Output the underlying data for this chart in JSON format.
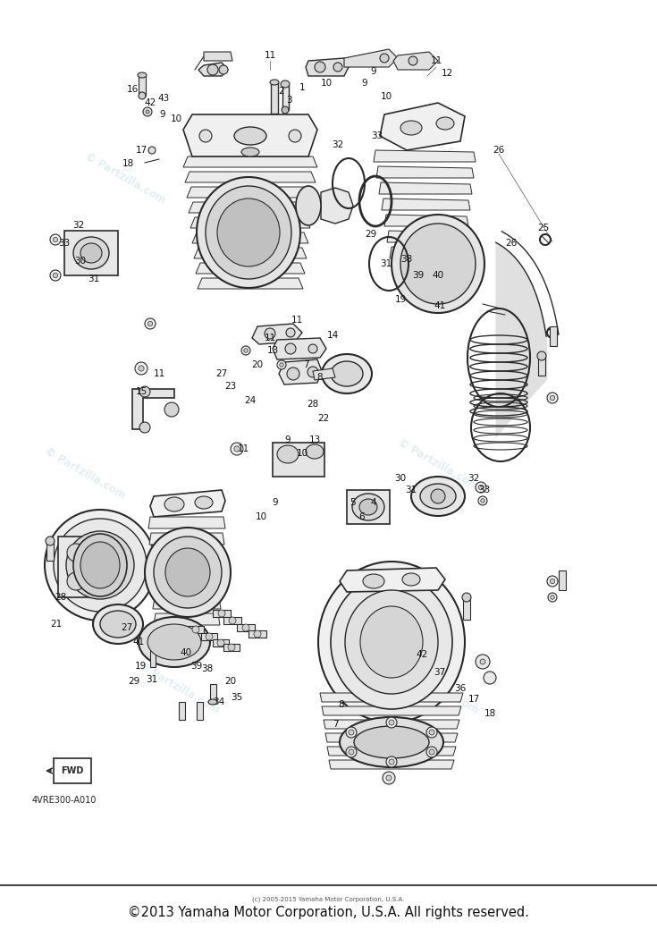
{
  "bg_color": "#ffffff",
  "footer_text": "©2013 Yamaha Motor Corporation, U.S.A. All rights reserved.",
  "footer_small": "(c) 2005-2015 Yamaha Motor Corporation, U.S.A.",
  "part_number": "4VRE300-A010",
  "watermark_color": "#c5dde8",
  "watermark_alpha": 0.5,
  "line_color": "#2a2a2a",
  "fig_width": 7.35,
  "fig_height": 10.49,
  "dpi": 100,
  "upper_labels": [
    [
      302,
      62,
      "11"
    ],
    [
      488,
      68,
      "11"
    ],
    [
      500,
      82,
      "12"
    ],
    [
      418,
      80,
      "9"
    ],
    [
      408,
      93,
      "9"
    ],
    [
      365,
      93,
      "10"
    ],
    [
      432,
      108,
      "10"
    ],
    [
      315,
      102,
      "2"
    ],
    [
      323,
      112,
      "3"
    ],
    [
      338,
      98,
      "1"
    ],
    [
      148,
      100,
      "16"
    ],
    [
      168,
      115,
      "42"
    ],
    [
      183,
      110,
      "43"
    ],
    [
      182,
      128,
      "9"
    ],
    [
      197,
      133,
      "10"
    ],
    [
      158,
      168,
      "17"
    ],
    [
      143,
      183,
      "18"
    ],
    [
      88,
      252,
      "32"
    ],
    [
      72,
      272,
      "33"
    ],
    [
      90,
      292,
      "30"
    ],
    [
      105,
      312,
      "31"
    ],
    [
      558,
      168,
      "26"
    ],
    [
      608,
      255,
      "25"
    ],
    [
      572,
      272,
      "26"
    ],
    [
      432,
      295,
      "31"
    ],
    [
      455,
      290,
      "38"
    ],
    [
      468,
      308,
      "39"
    ],
    [
      490,
      308,
      "40"
    ],
    [
      448,
      335,
      "19"
    ],
    [
      492,
      342,
      "41"
    ],
    [
      415,
      262,
      "29"
    ],
    [
      378,
      162,
      "32"
    ],
    [
      422,
      152,
      "33"
    ],
    [
      358,
      422,
      "8"
    ],
    [
      342,
      408,
      "7"
    ],
    [
      372,
      375,
      "14"
    ],
    [
      332,
      358,
      "11"
    ],
    [
      288,
      408,
      "20"
    ],
    [
      305,
      392,
      "13"
    ],
    [
      248,
      418,
      "27"
    ],
    [
      258,
      432,
      "23"
    ],
    [
      280,
      448,
      "24"
    ],
    [
      350,
      452,
      "28"
    ],
    [
      362,
      468,
      "22"
    ],
    [
      178,
      418,
      "11"
    ],
    [
      158,
      438,
      "15"
    ],
    [
      302,
      378,
      "11"
    ]
  ],
  "lower_labels": [
    [
      322,
      492,
      "9"
    ],
    [
      338,
      507,
      "10"
    ],
    [
      352,
      492,
      "13"
    ],
    [
      272,
      502,
      "11"
    ],
    [
      448,
      535,
      "30"
    ],
    [
      460,
      548,
      "31"
    ],
    [
      530,
      535,
      "32"
    ],
    [
      542,
      548,
      "33"
    ],
    [
      418,
      562,
      "4"
    ],
    [
      395,
      562,
      "5"
    ],
    [
      405,
      578,
      "6"
    ],
    [
      68,
      668,
      "28"
    ],
    [
      63,
      698,
      "21"
    ],
    [
      142,
      702,
      "27"
    ],
    [
      155,
      718,
      "41"
    ],
    [
      208,
      730,
      "40"
    ],
    [
      220,
      745,
      "39"
    ],
    [
      232,
      748,
      "38"
    ],
    [
      157,
      745,
      "19"
    ],
    [
      150,
      762,
      "29"
    ],
    [
      170,
      760,
      "31"
    ],
    [
      258,
      762,
      "20"
    ],
    [
      265,
      780,
      "35"
    ],
    [
      245,
      785,
      "34"
    ],
    [
      472,
      732,
      "42"
    ],
    [
      492,
      752,
      "37"
    ],
    [
      515,
      770,
      "36"
    ],
    [
      530,
      782,
      "17"
    ],
    [
      548,
      798,
      "18"
    ],
    [
      382,
      788,
      "8"
    ],
    [
      375,
      810,
      "7"
    ],
    [
      308,
      562,
      "9"
    ],
    [
      292,
      578,
      "10"
    ]
  ]
}
